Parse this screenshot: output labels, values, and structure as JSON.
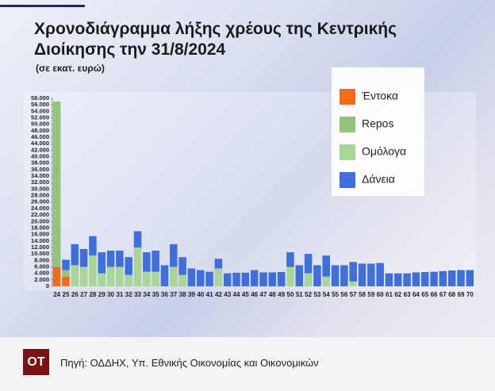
{
  "chart_data": {
    "type": "stacked_bar",
    "title": "Χρονοδιάγραμμα λήξης χρέους της Κεντρικής Διοίκησης την 31/8/2024",
    "subtitle": "(σε εκατ. ευρώ)",
    "categories": [
      "24",
      "25",
      "26",
      "27",
      "28",
      "29",
      "30",
      "31",
      "32",
      "33",
      "34",
      "35",
      "36",
      "37",
      "38",
      "39",
      "40",
      "41",
      "42",
      "43",
      "44",
      "45",
      "46",
      "47",
      "48",
      "49",
      "50",
      "51",
      "52",
      "53",
      "54",
      "55",
      "56",
      "57",
      "58",
      "59",
      "60",
      "61",
      "62",
      "63",
      "64",
      "65",
      "66",
      "67",
      "68",
      "69",
      "70"
    ],
    "series": [
      {
        "name": "Έντοκα",
        "color": "#f26b1d",
        "values": [
          6000,
          3000,
          0,
          0,
          0,
          0,
          0,
          0,
          0,
          0,
          0,
          0,
          0,
          0,
          0,
          0,
          0,
          0,
          0,
          0,
          0,
          0,
          0,
          0,
          0,
          0,
          0,
          0,
          0,
          0,
          0,
          0,
          0,
          0,
          0,
          0,
          0,
          0,
          0,
          0,
          0,
          0,
          0,
          0,
          0,
          0,
          0
        ]
      },
      {
        "name": "Repos",
        "color": "#94c47a",
        "values": [
          51000,
          2000,
          0,
          0,
          0,
          0,
          0,
          0,
          0,
          0,
          0,
          0,
          0,
          0,
          0,
          0,
          0,
          0,
          0,
          0,
          0,
          0,
          0,
          0,
          0,
          0,
          0,
          0,
          0,
          0,
          0,
          0,
          0,
          0,
          0,
          0,
          0,
          0,
          0,
          0,
          0,
          0,
          0,
          0,
          0,
          0,
          0
        ]
      },
      {
        "name": "Ομόλογα",
        "color": "#a9d596",
        "values": [
          0,
          0,
          6500,
          6000,
          9500,
          4000,
          6000,
          6000,
          3500,
          12000,
          4500,
          4500,
          0,
          6000,
          3500,
          0,
          0,
          0,
          5500,
          0,
          0,
          0,
          0,
          0,
          0,
          0,
          6000,
          0,
          4000,
          0,
          3000,
          0,
          0,
          1500,
          0,
          0,
          0,
          0,
          0,
          0,
          0,
          0,
          0,
          0,
          0,
          0,
          0
        ]
      },
      {
        "name": "Δάνεια",
        "color": "#3f6fdc",
        "values": [
          0,
          3200,
          6500,
          5500,
          6000,
          6500,
          5000,
          5000,
          5500,
          5000,
          6000,
          6500,
          6500,
          7000,
          5500,
          5500,
          5000,
          4500,
          3000,
          4000,
          4200,
          4200,
          5000,
          4300,
          4300,
          4400,
          4500,
          6500,
          6000,
          6500,
          6500,
          6500,
          6500,
          6000,
          7000,
          7000,
          7200,
          4000,
          4000,
          4000,
          4300,
          4400,
          4500,
          4700,
          4900,
          5000,
          5000
        ]
      }
    ],
    "ylim": [
      0,
      58000
    ],
    "yticks": [
      0,
      {
        "value": 2000,
        "label": "2.000"
      },
      {
        "value": 4000,
        "label": "4.000"
      },
      {
        "value": 6000,
        "label": "6.000"
      },
      {
        "value": 8000,
        "label": "8.000"
      },
      {
        "value": 10000,
        "label": "10.000"
      },
      {
        "value": 12000,
        "label": "12.000"
      },
      {
        "value": 14000,
        "label": "14.000"
      },
      {
        "value": 16000,
        "label": "16.000"
      },
      {
        "value": 18000,
        "label": "18.000"
      },
      {
        "value": 20000,
        "label": "20.000"
      },
      {
        "value": 22000,
        "label": "22.000"
      },
      {
        "value": 24000,
        "label": "24.000"
      },
      {
        "value": 26000,
        "label": "26.000"
      },
      {
        "value": 28000,
        "label": "28.000"
      },
      {
        "value": 30000,
        "label": "30.000"
      },
      {
        "value": 32000,
        "label": "32.000"
      },
      {
        "value": 34000,
        "label": "34.000"
      },
      {
        "value": 36000,
        "label": "36.000"
      },
      {
        "value": 38000,
        "label": "38.000"
      },
      {
        "value": 40000,
        "label": "40.000"
      },
      {
        "value": 42000,
        "label": "42.000"
      },
      {
        "value": 44000,
        "label": "44.000"
      },
      {
        "value": 46000,
        "label": "46.000"
      },
      {
        "value": 48000,
        "label": "48.000"
      },
      {
        "value": 50000,
        "label": "50.000"
      },
      {
        "value": 52000,
        "label": "52.000"
      },
      {
        "value": 54000,
        "label": "54.000"
      },
      {
        "value": 56000,
        "label": "56.000"
      },
      {
        "value": 58000,
        "label": "58.000"
      }
    ],
    "legend": "top-right",
    "source": "Πηγή: ΟΔΔΗΧ, Υπ. Εθνικής Οικονομίας και Οικονομικών",
    "logo": "OT"
  }
}
